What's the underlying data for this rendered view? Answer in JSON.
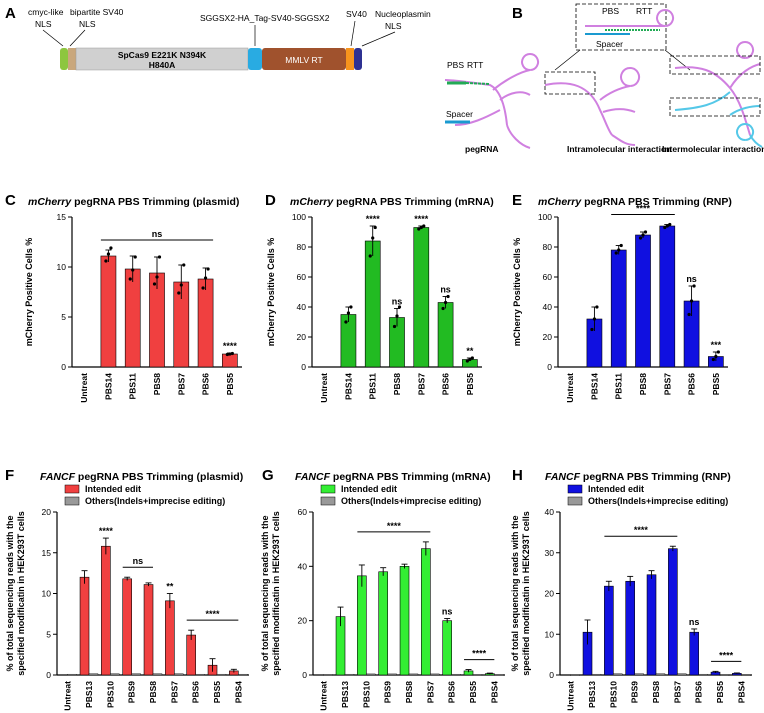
{
  "panel_a": {
    "letter": "A",
    "labels": {
      "cmyc": "cmyc-like",
      "cmyc_nls": "NLS",
      "bipartite": "bipartite SV40",
      "bipartite_nls": "NLS",
      "sggsx2": "SGGSX2-HA_Tag-SV40-SGGSX2",
      "sv40": "SV40",
      "nucleoplasmin": "Nucleoplasmin",
      "nucleoplasmin_nls": "NLS",
      "spcas9_line1": "SpCas9 E221K N394K",
      "spcas9_line2": "H840A",
      "mmlv": "MMLV RT"
    },
    "colors": {
      "cmyc": "#8dc63f",
      "bipartite": "#c9a77c",
      "spcas9": "#d0d0d0",
      "linker": "#29abe2",
      "mmlv": "#a0522d",
      "sv40": "#f7941d",
      "nucleoplasmin": "#2e3192"
    }
  },
  "panel_b": {
    "letter": "B",
    "labels": {
      "pbs": "PBS",
      "rtt": "RTT",
      "spacer": "Spacer",
      "pbs2": "PBS",
      "rtt2": "RTT",
      "spacer2": "Spacer",
      "pegrna": "pegRNA",
      "intra": "Intramolecular interaction",
      "inter": "Intermolecular interaction"
    }
  },
  "chart_data": [
    {
      "id": "C",
      "type": "bar",
      "title_italic": "mCherry",
      "title_rest": " pegRNA PBS Trimming (plasmid)",
      "ylabel": "mCherry Positive Cells %",
      "ylim": [
        0,
        15
      ],
      "yticks": [
        0,
        5,
        10,
        15
      ],
      "categories": [
        "Untreat",
        "PBS14",
        "PBS11",
        "PBS8",
        "PBS7",
        "PBS6",
        "PBS5"
      ],
      "color": "#f04040",
      "values": [
        0,
        11.1,
        9.8,
        9.4,
        8.5,
        8.8,
        1.3
      ],
      "errors": [
        0,
        0.6,
        1.3,
        1.6,
        1.7,
        1.1,
        0.1
      ],
      "points": [
        [
          0,
          0,
          0
        ],
        [
          10.6,
          11.3,
          11.9
        ],
        [
          8.8,
          9.7,
          11.0
        ],
        [
          8.3,
          9.0,
          11.0
        ],
        [
          7.4,
          8.2,
          10.2
        ],
        [
          7.9,
          8.9,
          9.8
        ],
        [
          1.25,
          1.3,
          1.35
        ]
      ],
      "sig": [
        "",
        "",
        "",
        "",
        "",
        "",
        "****"
      ],
      "bracket": {
        "from": 1,
        "to": 5,
        "label": "ns"
      }
    },
    {
      "id": "D",
      "type": "bar",
      "title_italic": "mCherry",
      "title_rest": " pegRNA PBS Trimming (mRNA)",
      "ylabel": "mCherry Positive Cells %",
      "ylim": [
        0,
        100
      ],
      "yticks": [
        0,
        20,
        40,
        60,
        80,
        100
      ],
      "categories": [
        "Untreat",
        "PBS14",
        "PBS11",
        "PBS8",
        "PBS7",
        "PBS6",
        "PBS5"
      ],
      "color": "#22bb22",
      "values": [
        0,
        35,
        84,
        33,
        93,
        43,
        5
      ],
      "errors": [
        0,
        5,
        10,
        6,
        1,
        4,
        1
      ],
      "points": [
        [
          0,
          0,
          0
        ],
        [
          30,
          36,
          40
        ],
        [
          74,
          86,
          93
        ],
        [
          27,
          34,
          40
        ],
        [
          92,
          93,
          94
        ],
        [
          39,
          43,
          47
        ],
        [
          4,
          5,
          6
        ]
      ],
      "sig": [
        "",
        "",
        "****",
        "ns",
        "****",
        "ns",
        "**"
      ],
      "bracket": null
    },
    {
      "id": "E",
      "type": "bar",
      "title_italic": "mCherry",
      "title_rest": " pegRNA PBS Trimming (RNP)",
      "ylabel": "mCherry Positive Cells %",
      "ylim": [
        0,
        100
      ],
      "yticks": [
        0,
        20,
        40,
        60,
        80,
        100
      ],
      "categories": [
        "Untreat",
        "PBS14",
        "PBS11",
        "PBS8",
        "PBS7",
        "PBS6",
        "PBS5"
      ],
      "color": "#1010e0",
      "values": [
        0,
        32,
        78,
        88,
        94,
        44,
        7
      ],
      "errors": [
        0,
        8,
        3,
        2,
        1,
        10,
        3
      ],
      "points": [
        [
          0,
          0,
          0
        ],
        [
          25,
          32,
          40
        ],
        [
          76,
          78,
          81
        ],
        [
          86,
          88,
          90
        ],
        [
          93,
          94,
          95
        ],
        [
          35,
          44,
          54
        ],
        [
          5,
          7,
          10
        ]
      ],
      "sig": [
        "",
        "",
        "",
        "",
        "",
        "ns",
        "***"
      ],
      "bracket": {
        "from": 2,
        "to": 4,
        "label": "****"
      }
    },
    {
      "id": "F",
      "type": "bar",
      "title_italic": "FANCF",
      "title_rest": " pegRNA PBS Trimming (plasmid)",
      "ylabel1": "% of total sequencing reads with the",
      "ylabel2": "specified modificatin in HEK293T cells",
      "ylim": [
        0,
        20
      ],
      "yticks": [
        0,
        5,
        10,
        15,
        20
      ],
      "categories": [
        "Untreat",
        "PBS13",
        "PBS10",
        "PBS9",
        "PBS8",
        "PBS7",
        "PBS6",
        "PBS5",
        "PBS4"
      ],
      "color": "#f04040",
      "others_color": "#999999",
      "legend": [
        "Intended edit",
        "Others(Indels+imprecise editing)"
      ],
      "values": [
        0,
        12,
        15.8,
        11.8,
        11.1,
        9.1,
        4.9,
        1.2,
        0.5
      ],
      "errors": [
        0,
        0.8,
        1.0,
        0.2,
        0.2,
        0.9,
        0.6,
        0.8,
        0.2
      ],
      "others": [
        0.1,
        0.15,
        0.15,
        0.15,
        0.15,
        0.15,
        0.1,
        0.1,
        0.1
      ],
      "sig": [
        "",
        "",
        "****",
        "",
        "",
        "**",
        "",
        "",
        ""
      ],
      "brackets": [
        {
          "from": 3,
          "to": 4,
          "label": "ns"
        },
        {
          "from": 6,
          "to": 8,
          "label": "****"
        }
      ]
    },
    {
      "id": "G",
      "type": "bar",
      "title_italic": "FANCF",
      "title_rest": " pegRNA PBS Trimming (mRNA)",
      "ylabel1": "% of total sequencing reads with the",
      "ylabel2": "specified modificatin in HEK293T cells",
      "ylim": [
        0,
        60
      ],
      "yticks": [
        0,
        20,
        40,
        60
      ],
      "categories": [
        "Untreat",
        "PBS13",
        "PBS10",
        "PBS9",
        "PBS8",
        "PBS7",
        "PBS6",
        "PBS5",
        "PBS4"
      ],
      "color": "#33ee33",
      "others_color": "#999999",
      "legend": [
        "Intended edit",
        "Others(Indels+imprecise editing)"
      ],
      "values": [
        0,
        21.5,
        36.5,
        38,
        40,
        46.5,
        20,
        1.5,
        0.5
      ],
      "errors": [
        0,
        3.5,
        4,
        1.5,
        0.8,
        2.5,
        0.8,
        0.5,
        0.2
      ],
      "others": [
        0.2,
        0.3,
        0.4,
        0.4,
        0.4,
        0.4,
        0.3,
        0.2,
        0.2
      ],
      "sig": [
        "",
        "",
        "",
        "",
        "",
        "",
        "ns",
        "",
        ""
      ],
      "brackets": [
        {
          "from": 2,
          "to": 5,
          "label": "****"
        },
        {
          "from": 7,
          "to": 8,
          "label": "****"
        }
      ]
    },
    {
      "id": "H",
      "type": "bar",
      "title_italic": "FANCF",
      "title_rest": " pegRNA PBS Trimming (RNP)",
      "ylabel1": "% of total sequencing reads with the",
      "ylabel2": "specified modificatin in HEK293T cells",
      "ylim": [
        0,
        40
      ],
      "yticks": [
        0,
        10,
        20,
        30,
        40
      ],
      "categories": [
        "Untreat",
        "PBS13",
        "PBS10",
        "PBS9",
        "PBS8",
        "PBS7",
        "PBS6",
        "PBS5",
        "PBS4"
      ],
      "color": "#1010e0",
      "others_color": "#999999",
      "legend": [
        "Intended edit",
        "Others(Indels+imprecise editing)"
      ],
      "values": [
        0,
        10.5,
        21.8,
        23,
        24.6,
        31,
        10.5,
        0.7,
        0.4
      ],
      "errors": [
        0,
        3,
        1.2,
        1.2,
        1,
        0.6,
        0.8,
        0.2,
        0.1
      ],
      "others": [
        0.1,
        0.2,
        0.3,
        0.3,
        0.3,
        0.3,
        0.2,
        0.1,
        0.1
      ],
      "sig": [
        "",
        "",
        "",
        "",
        "",
        "",
        "ns",
        "",
        ""
      ],
      "brackets": [
        {
          "from": 2,
          "to": 5,
          "label": "****"
        },
        {
          "from": 7,
          "to": 8,
          "label": "****"
        }
      ]
    }
  ]
}
